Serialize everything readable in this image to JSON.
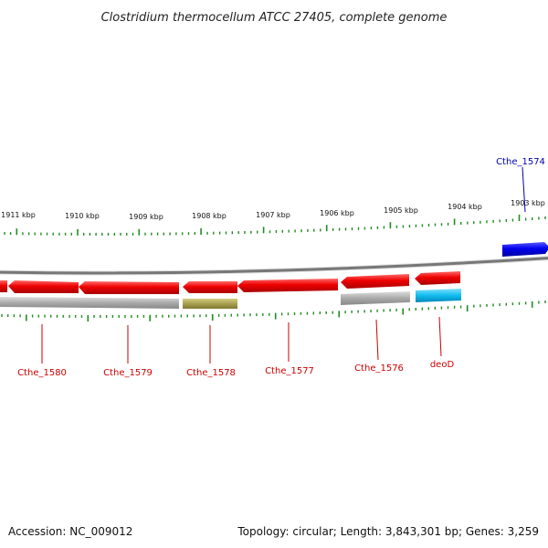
{
  "title": "Clostridium thermocellum ATCC 27405, complete genome",
  "ruler": {
    "tick_labels": [
      "1911 kbp",
      "1910 kbp",
      "1909 kbp",
      "1908 kbp",
      "1907 kbp",
      "1906 kbp",
      "1905 kbp",
      "1904 kbp",
      "1903 kbp"
    ]
  },
  "genes": [
    {
      "name": "Cthe_1574",
      "strand": "forward",
      "color": "#0000ee",
      "label_color": "#0000aa"
    },
    {
      "name": "Cthe_1580",
      "strand": "reverse",
      "color": "#ee0000",
      "label_color": "#cc0000"
    },
    {
      "name": "Cthe_1579",
      "strand": "reverse",
      "color": "#ee0000",
      "label_color": "#cc0000"
    },
    {
      "name": "Cthe_1578",
      "strand": "reverse",
      "color": "#ee0000",
      "label_color": "#cc0000"
    },
    {
      "name": "Cthe_1577",
      "strand": "reverse",
      "color": "#ee0000",
      "label_color": "#cc0000"
    },
    {
      "name": "Cthe_1576",
      "strand": "reverse",
      "color": "#ee0000",
      "label_color": "#cc0000"
    },
    {
      "name": "deoD",
      "strand": "reverse",
      "color": "#ee0000",
      "label_color": "#cc0000"
    }
  ],
  "colors": {
    "backbone": "#777777",
    "tick": "#228b22",
    "feature_gray": "#aaaaaa",
    "feature_olive": "#a8a050",
    "feature_cyan": "#11bbee"
  },
  "footer": {
    "accession": "Accession: NC_009012",
    "summary": "Topology: circular; Length: 3,843,301 bp; Genes: 3,259"
  }
}
